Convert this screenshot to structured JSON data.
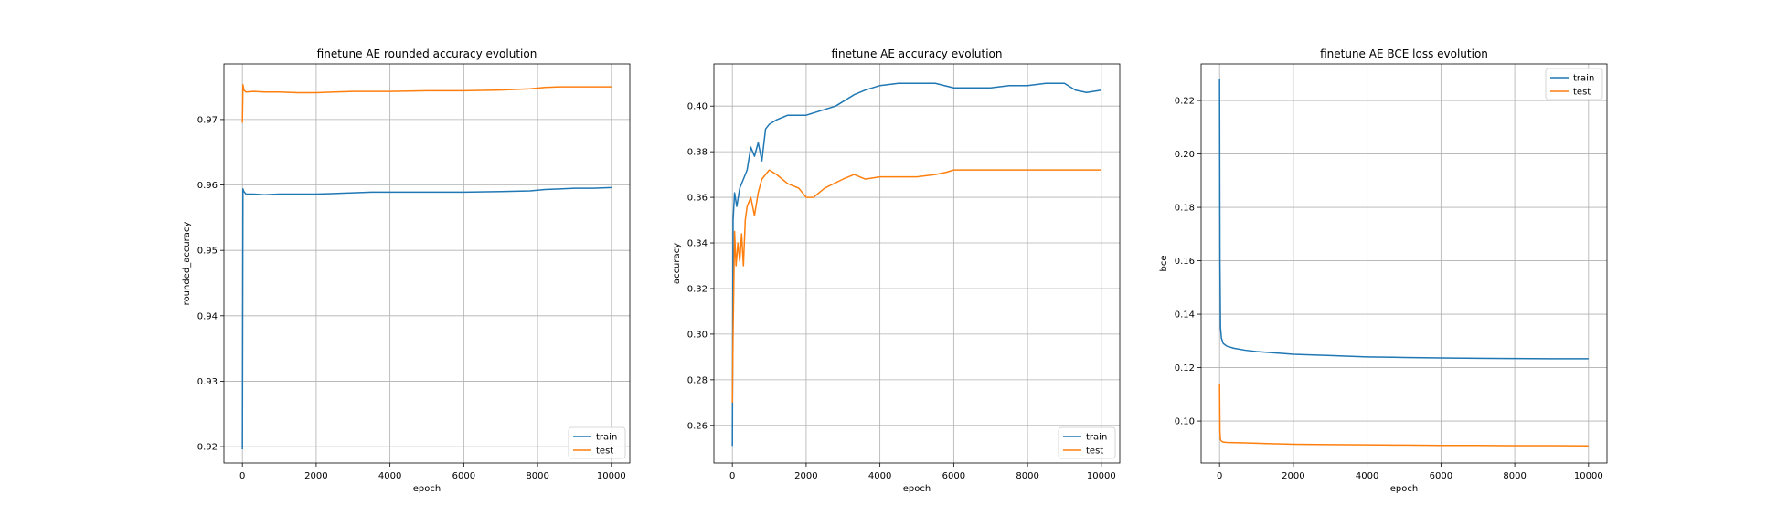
{
  "colors": {
    "train": "#1f77b4",
    "test": "#ff7f0e",
    "grid": "#b0b0b0"
  },
  "chart_data": [
    {
      "type": "line",
      "title": "finetune AE rounded accuracy evolution",
      "xlabel": "epoch",
      "ylabel": "rounded_accuracy",
      "xlim": [
        -500,
        10500
      ],
      "ylim": [
        0.9175,
        0.9785
      ],
      "xticks": [
        0,
        2000,
        4000,
        6000,
        8000,
        10000
      ],
      "xtick_labels": [
        "0",
        "2000",
        "4000",
        "6000",
        "8000",
        "10000"
      ],
      "yticks": [
        0.92,
        0.93,
        0.94,
        0.95,
        0.96,
        0.97
      ],
      "ytick_labels": [
        "0.92",
        "0.93",
        "0.94",
        "0.95",
        "0.96",
        "0.97"
      ],
      "grid": true,
      "legend_position": "lower-right",
      "series": [
        {
          "name": "train",
          "x": [
            0,
            15,
            40,
            100,
            300,
            600,
            1000,
            1500,
            2000,
            2500,
            3000,
            3500,
            4000,
            5000,
            6000,
            7000,
            7800,
            8200,
            8600,
            9000,
            9500,
            10000
          ],
          "y": [
            0.9196,
            0.9594,
            0.959,
            0.9586,
            0.9586,
            0.9585,
            0.9586,
            0.9586,
            0.9586,
            0.9587,
            0.9588,
            0.9589,
            0.9589,
            0.9589,
            0.9589,
            0.959,
            0.9591,
            0.9593,
            0.9594,
            0.9595,
            0.9595,
            0.9596
          ]
        },
        {
          "name": "test",
          "x": [
            0,
            15,
            40,
            100,
            300,
            600,
            1000,
            1500,
            2000,
            2500,
            3000,
            3500,
            4000,
            5000,
            6000,
            7000,
            7800,
            8200,
            8600,
            9000,
            9500,
            10000
          ],
          "y": [
            0.9695,
            0.9753,
            0.9745,
            0.9742,
            0.9743,
            0.9742,
            0.9742,
            0.9741,
            0.9741,
            0.9742,
            0.9743,
            0.9743,
            0.9743,
            0.9744,
            0.9744,
            0.9745,
            0.9747,
            0.9749,
            0.975,
            0.975,
            0.975,
            0.975
          ]
        }
      ]
    },
    {
      "type": "line",
      "title": "finetune AE accuracy evolution",
      "xlabel": "epoch",
      "ylabel": "accuracy",
      "xlim": [
        -500,
        10500
      ],
      "ylim": [
        0.2435,
        0.4185
      ],
      "xticks": [
        0,
        2000,
        4000,
        6000,
        8000,
        10000
      ],
      "xtick_labels": [
        "0",
        "2000",
        "4000",
        "6000",
        "8000",
        "10000"
      ],
      "yticks": [
        0.26,
        0.28,
        0.3,
        0.32,
        0.34,
        0.36,
        0.38,
        0.4
      ],
      "ytick_labels": [
        "0.26",
        "0.28",
        "0.30",
        "0.32",
        "0.34",
        "0.36",
        "0.38",
        "0.40"
      ],
      "grid": true,
      "legend_position": "lower-right",
      "series": [
        {
          "name": "train",
          "x": [
            0,
            20,
            60,
            120,
            200,
            300,
            400,
            500,
            600,
            700,
            800,
            900,
            1000,
            1200,
            1500,
            1800,
            2000,
            2400,
            2800,
            3000,
            3300,
            3600,
            4000,
            4500,
            5000,
            5500,
            6000,
            6500,
            7000,
            7500,
            8000,
            8500,
            9000,
            9300,
            9600,
            10000
          ],
          "y": [
            0.251,
            0.35,
            0.362,
            0.356,
            0.364,
            0.368,
            0.372,
            0.382,
            0.378,
            0.384,
            0.376,
            0.39,
            0.392,
            0.394,
            0.396,
            0.396,
            0.396,
            0.398,
            0.4,
            0.402,
            0.405,
            0.407,
            0.409,
            0.41,
            0.41,
            0.41,
            0.408,
            0.408,
            0.408,
            0.409,
            0.409,
            0.41,
            0.41,
            0.407,
            0.406,
            0.407
          ]
        },
        {
          "name": "test",
          "x": [
            0,
            20,
            60,
            100,
            150,
            200,
            250,
            300,
            350,
            400,
            500,
            600,
            700,
            800,
            900,
            1000,
            1200,
            1500,
            1800,
            2000,
            2200,
            2500,
            3000,
            3300,
            3600,
            4000,
            4500,
            5000,
            5500,
            5800,
            6000,
            7000,
            8000,
            9000,
            10000
          ],
          "y": [
            0.27,
            0.3,
            0.345,
            0.33,
            0.34,
            0.332,
            0.344,
            0.33,
            0.35,
            0.356,
            0.36,
            0.352,
            0.362,
            0.368,
            0.37,
            0.372,
            0.37,
            0.366,
            0.364,
            0.36,
            0.36,
            0.364,
            0.368,
            0.37,
            0.368,
            0.369,
            0.369,
            0.369,
            0.37,
            0.371,
            0.372,
            0.372,
            0.372,
            0.372,
            0.372
          ]
        }
      ]
    },
    {
      "type": "line",
      "title": "finetune AE BCE loss evolution",
      "xlabel": "epoch",
      "ylabel": "bce",
      "xlim": [
        -500,
        10500
      ],
      "ylim": [
        0.0843,
        0.2337
      ],
      "xticks": [
        0,
        2000,
        4000,
        6000,
        8000,
        10000
      ],
      "xtick_labels": [
        "0",
        "2000",
        "4000",
        "6000",
        "8000",
        "10000"
      ],
      "yticks": [
        0.1,
        0.12,
        0.14,
        0.16,
        0.18,
        0.2,
        0.22
      ],
      "ytick_labels": [
        "0.10",
        "0.12",
        "0.14",
        "0.16",
        "0.18",
        "0.20",
        "0.22"
      ],
      "grid": true,
      "legend_position": "upper-right",
      "series": [
        {
          "name": "train",
          "x": [
            0,
            10,
            25,
            50,
            100,
            200,
            400,
            700,
            1000,
            1500,
            2000,
            3000,
            4000,
            5000,
            6000,
            7000,
            8000,
            9000,
            10000
          ],
          "y": [
            0.228,
            0.16,
            0.135,
            0.131,
            0.129,
            0.128,
            0.1272,
            0.1265,
            0.126,
            0.1255,
            0.125,
            0.1245,
            0.124,
            0.1238,
            0.1236,
            0.1235,
            0.1234,
            0.1233,
            0.1233
          ]
        },
        {
          "name": "test",
          "x": [
            0,
            10,
            25,
            50,
            100,
            200,
            400,
            700,
            1000,
            1500,
            2000,
            3000,
            4000,
            5000,
            6000,
            7000,
            8000,
            9000,
            10000
          ],
          "y": [
            0.114,
            0.096,
            0.093,
            0.0925,
            0.0921,
            0.092,
            0.0919,
            0.0918,
            0.0917,
            0.0915,
            0.0913,
            0.0912,
            0.0911,
            0.091,
            0.0909,
            0.0909,
            0.0908,
            0.0908,
            0.0907
          ]
        }
      ]
    }
  ]
}
